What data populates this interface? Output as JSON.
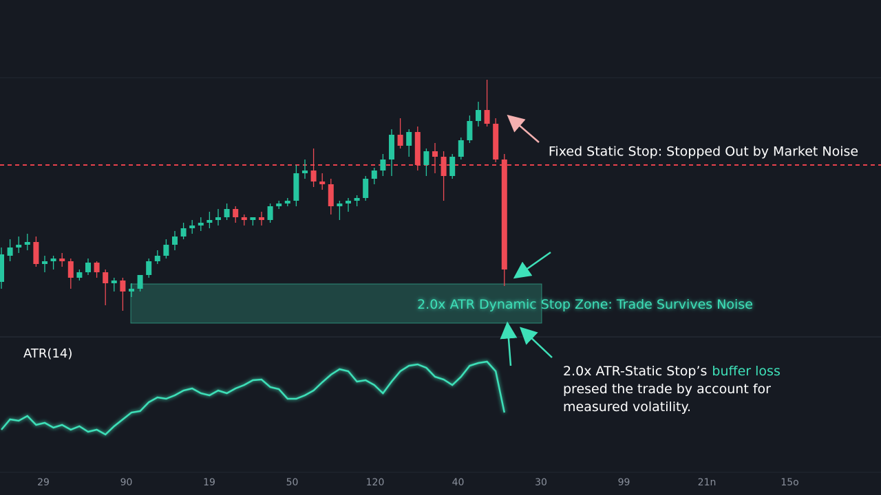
{
  "chart_data": [
    {
      "type": "candlestick",
      "open": [
        17.5,
        27,
        30,
        31,
        32,
        24,
        25,
        26,
        25,
        19,
        21,
        24.5,
        21,
        17,
        18,
        14,
        15,
        20,
        25,
        27,
        31,
        34,
        37,
        38,
        39,
        40,
        41,
        44,
        41,
        40,
        41,
        40,
        45,
        46,
        47,
        57,
        58,
        54,
        53,
        45,
        46,
        47,
        48,
        55,
        58,
        62,
        71,
        67,
        72,
        60,
        65,
        63,
        56,
        63,
        69,
        76,
        80,
        75,
        62
      ],
      "high": [
        30,
        33,
        34,
        35,
        34,
        27,
        27,
        28,
        26,
        22,
        26,
        25,
        22,
        19,
        19,
        17,
        20,
        26,
        29,
        33,
        36,
        39,
        40,
        41,
        43,
        44,
        46,
        45,
        42,
        41,
        43,
        46,
        47,
        48,
        60,
        62,
        66,
        57,
        55,
        47,
        48,
        49,
        56,
        59,
        64,
        73,
        77,
        73,
        74,
        66,
        68,
        65,
        64,
        70,
        78,
        83,
        91,
        77,
        64
      ],
      "low": [
        15,
        25,
        28,
        29,
        23,
        21,
        22,
        23,
        15,
        18,
        20,
        19,
        9,
        14,
        7,
        12,
        14,
        19,
        24,
        26,
        29,
        33,
        35,
        36,
        37,
        38,
        40,
        39,
        38,
        38,
        38,
        39,
        44,
        45,
        45,
        55,
        52,
        51,
        42,
        40,
        43,
        45,
        47,
        53,
        56,
        56,
        66,
        63,
        58,
        56,
        57,
        47,
        55,
        62,
        68,
        74,
        74,
        61,
        16
      ],
      "close": [
        27.5,
        30,
        31,
        32,
        24,
        25,
        26,
        25,
        19,
        21,
        24.5,
        21,
        17,
        18,
        14,
        15,
        20,
        25,
        27,
        31,
        34,
        37,
        38,
        39,
        40,
        41,
        44,
        41,
        40,
        41,
        40,
        45,
        46,
        47,
        57,
        58,
        54,
        53,
        45,
        46,
        47,
        48,
        55,
        58,
        62,
        71,
        67,
        72,
        60,
        65,
        63,
        56,
        63,
        69,
        76,
        80,
        75,
        62,
        22
      ],
      "ylim": [
        0,
        100
      ],
      "colors": {
        "up": "#26c6a0",
        "down": "#ef4b55"
      },
      "static_stop": {
        "value": 60,
        "label": "Fixed Static Stop: Stopped Out by Market Noise",
        "color": "#e8424c"
      },
      "stop_zone": {
        "range": [
          2.5,
          16.75
        ],
        "label": "2.0x ATR Dynamic Stop Zone: Trade Survives Noise",
        "color": "#3ee0b8"
      },
      "x_axis_labels": [
        "29",
        "90",
        "19",
        "50",
        "120",
        "40",
        "30",
        "99",
        "21n",
        "15o"
      ]
    },
    {
      "type": "line",
      "title": "ATR(14)",
      "values": [
        3.75,
        7.5,
        7,
        8.75,
        5.5,
        6.25,
        4.5,
        5.5,
        3.75,
        5,
        3,
        3.75,
        2,
        5,
        7.5,
        10,
        10.5,
        13.75,
        15.5,
        15,
        16.25,
        18,
        18.75,
        17,
        16.25,
        18,
        17,
        18.75,
        20,
        21.75,
        22,
        19.25,
        18.5,
        15,
        15,
        16.25,
        18,
        21,
        23.75,
        25.75,
        25,
        21.25,
        21.75,
        20,
        17,
        21.25,
        25,
        27,
        27.5,
        26.25,
        23,
        22,
        20,
        23,
        27,
        28,
        28.5,
        25,
        10
      ],
      "ylim": [
        0,
        30
      ],
      "color": "#3ee0b8",
      "note": [
        [
          "2.0x ATR-Static Stop’s",
          "buffer loss"
        ],
        [
          "presed the trade by account for"
        ],
        [
          "measured volatility."
        ]
      ]
    }
  ]
}
